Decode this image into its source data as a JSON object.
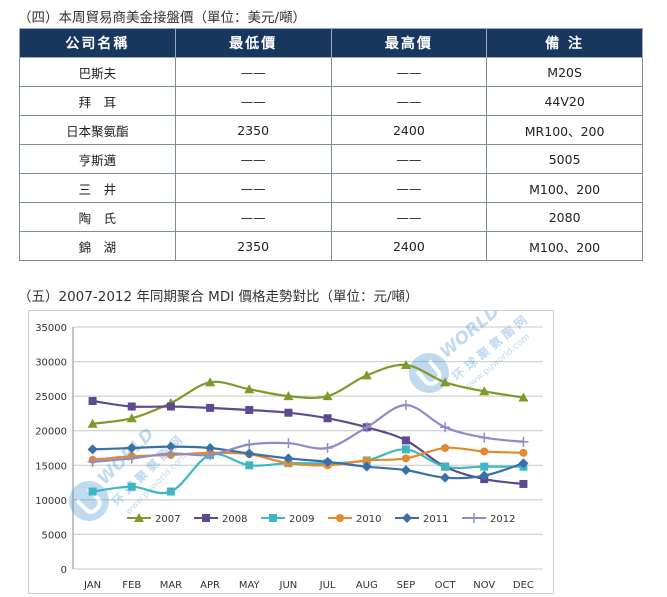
{
  "section4": {
    "title": "（四）本周貿易商美金接盤價（單位：美元/噸）",
    "headers": [
      "公司名稱",
      "最低價",
      "最高價",
      "備 注"
    ],
    "rows": [
      [
        "巴斯夫",
        "——",
        "——",
        "M20S"
      ],
      [
        "拜　耳",
        "——",
        "——",
        "44V20"
      ],
      [
        "日本聚氨酯",
        "2350",
        "2400",
        "MR100、200"
      ],
      [
        "亨斯邁",
        "——",
        "——",
        "5005"
      ],
      [
        "三　井",
        "——",
        "——",
        "M100、200"
      ],
      [
        "陶　氏",
        "——",
        "——",
        "2080"
      ],
      [
        "錦　湖",
        "2350",
        "2400",
        "M100、200"
      ]
    ]
  },
  "section5": {
    "title": "（五）2007-2012 年同期聚合 MDI 價格走勢對比（單位：元/噸）"
  },
  "watermark": {
    "brand": "WORLD",
    "cn": "环 球 聚 氨 酯 网",
    "url": "www.puworld.com"
  },
  "chart_data": {
    "type": "line",
    "categories": [
      "JAN",
      "FEB",
      "MAR",
      "APR",
      "MAY",
      "JUN",
      "JUL",
      "AUG",
      "SEP",
      "OCT",
      "NOV",
      "DEC"
    ],
    "ylim": [
      0,
      35000
    ],
    "yticks": [
      0,
      5000,
      10000,
      15000,
      20000,
      25000,
      30000,
      35000
    ],
    "grid": true,
    "legend_position": "bottom",
    "series": [
      {
        "name": "2007",
        "color": "#7f9a2c",
        "marker": "triangle",
        "values": [
          21000,
          21800,
          24000,
          27000,
          26000,
          25000,
          25000,
          28000,
          29500,
          27000,
          25700,
          24800
        ]
      },
      {
        "name": "2008",
        "color": "#5e4a8f",
        "marker": "square",
        "values": [
          24300,
          23500,
          23500,
          23300,
          23000,
          22600,
          21800,
          20500,
          18600,
          14800,
          13000,
          12300
        ]
      },
      {
        "name": "2009",
        "color": "#3fb7c2",
        "marker": "square",
        "values": [
          11200,
          11900,
          11200,
          16500,
          15000,
          15300,
          15300,
          15700,
          17300,
          14800,
          14800,
          14800
        ]
      },
      {
        "name": "2010",
        "color": "#e48a2e",
        "marker": "circle",
        "values": [
          15800,
          16300,
          16500,
          16800,
          16600,
          15300,
          15000,
          15700,
          16000,
          17500,
          17000,
          16800
        ]
      },
      {
        "name": "2011",
        "color": "#3a6fa8",
        "marker": "diamond",
        "values": [
          17300,
          17500,
          17700,
          17500,
          16700,
          16000,
          15500,
          14800,
          14300,
          13200,
          13500,
          15300
        ]
      },
      {
        "name": "2012",
        "color": "#8c8cc8",
        "marker": "plus",
        "values": [
          15500,
          16000,
          16700,
          16500,
          18000,
          18200,
          17500,
          20500,
          23700,
          20500,
          19000,
          18400
        ]
      }
    ]
  }
}
